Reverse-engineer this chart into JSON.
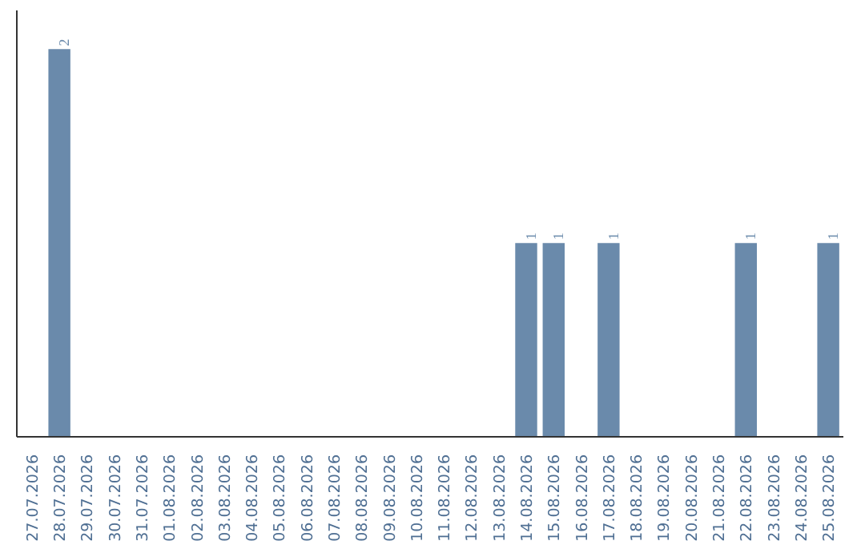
{
  "chart_data": {
    "type": "bar",
    "categories": [
      "27.07.2026",
      "28.07.2026",
      "29.07.2026",
      "30.07.2026",
      "31.07.2026",
      "01.08.2026",
      "02.08.2026",
      "03.08.2026",
      "04.08.2026",
      "05.08.2026",
      "06.08.2026",
      "07.08.2026",
      "08.08.2026",
      "09.08.2026",
      "10.08.2026",
      "11.08.2026",
      "12.08.2026",
      "13.08.2026",
      "14.08.2026",
      "15.08.2026",
      "16.08.2026",
      "17.08.2026",
      "18.08.2026",
      "19.08.2026",
      "20.08.2026",
      "21.08.2026",
      "22.08.2026",
      "23.08.2026",
      "24.08.2026",
      "25.08.2026"
    ],
    "values": [
      0,
      2,
      0,
      0,
      0,
      0,
      0,
      0,
      0,
      0,
      0,
      0,
      0,
      0,
      0,
      0,
      0,
      0,
      1,
      1,
      0,
      1,
      0,
      0,
      0,
      0,
      1,
      0,
      0,
      1
    ],
    "value_labels": [
      null,
      "2",
      null,
      null,
      null,
      null,
      null,
      null,
      null,
      null,
      null,
      null,
      null,
      null,
      null,
      null,
      null,
      null,
      "1",
      "1",
      null,
      "1",
      null,
      null,
      null,
      null,
      "1",
      null,
      null,
      "1"
    ],
    "color": "#6a8aab",
    "grid": false
  }
}
